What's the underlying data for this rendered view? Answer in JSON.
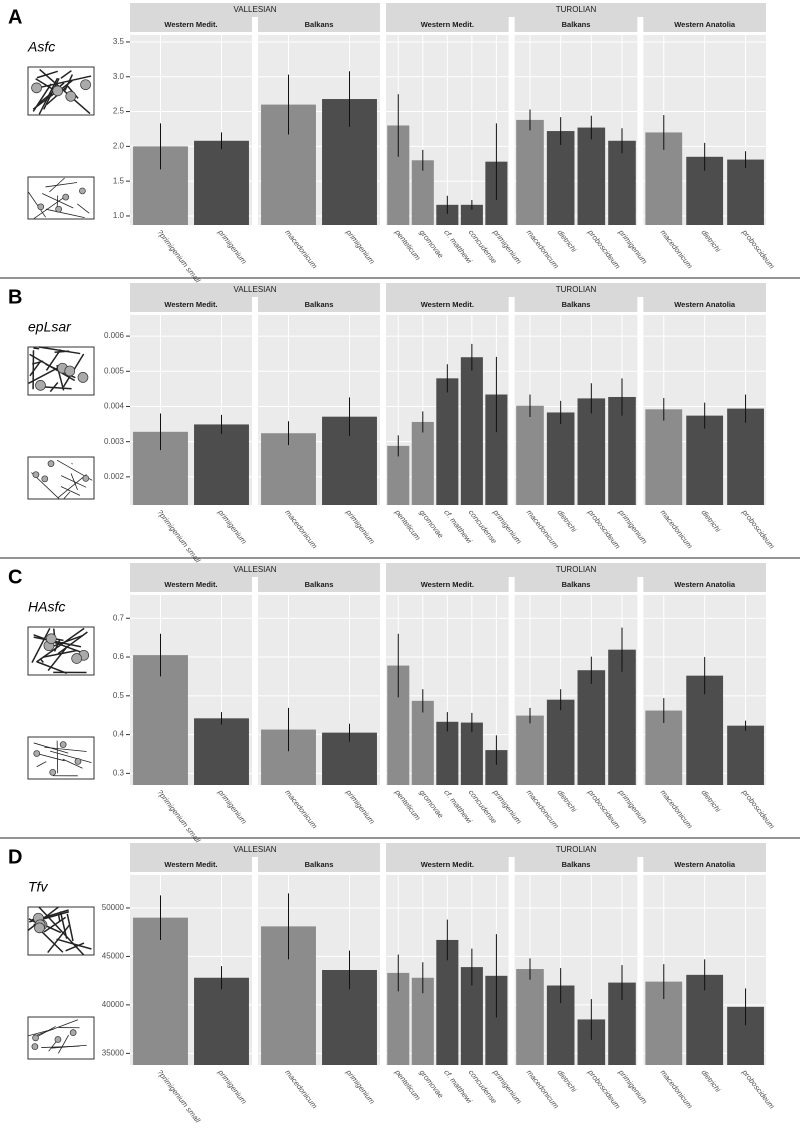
{
  "chart_data": [
    {
      "type": "bar",
      "label": "A",
      "metric": "Asfc",
      "ylim": [
        0.87,
        3.6
      ],
      "yticks": [
        {
          "value": 1,
          "label": "1.0"
        },
        1.5,
        {
          "value": 2,
          "label": "2.0"
        },
        2.5,
        {
          "value": 3,
          "label": "3.0"
        },
        3.5
      ],
      "grid": true,
      "periods": [
        {
          "name": "VALLESIAN",
          "facets": [
            {
              "region": "Western Medit.",
              "categories": [
                "?primigenium small",
                "primigenium"
              ],
              "values": [
                2.0,
                2.08
              ],
              "errors": [
                0.33,
                0.12
              ],
              "colors": [
                "#8c8c8c",
                "#4d4d4d"
              ]
            },
            {
              "region": "Balkans",
              "categories": [
                "macedonicum",
                "primigenium"
              ],
              "values": [
                2.6,
                2.68
              ],
              "errors": [
                0.43,
                0.4
              ],
              "colors": [
                "#8c8c8c",
                "#4d4d4d"
              ]
            }
          ]
        },
        {
          "name": "TUROLIAN",
          "facets": [
            {
              "region": "Western Medit.",
              "categories": [
                "pentelicum",
                "gromovae",
                "cf. matthewi",
                "concudense",
                "primigenium"
              ],
              "values": [
                2.3,
                1.8,
                1.16,
                1.16,
                1.78
              ],
              "errors": [
                0.45,
                0.15,
                0.13,
                0.07,
                0.55
              ],
              "colors": [
                "#8c8c8c",
                "#8c8c8c",
                "#4d4d4d",
                "#4d4d4d",
                "#4d4d4d"
              ]
            },
            {
              "region": "Balkans",
              "categories": [
                "macedonicum",
                "dietrichi",
                "proboscideum",
                "primigenium"
              ],
              "values": [
                2.38,
                2.22,
                2.27,
                2.08
              ],
              "errors": [
                0.15,
                0.2,
                0.17,
                0.18
              ],
              "colors": [
                "#8c8c8c",
                "#4d4d4d",
                "#4d4d4d",
                "#4d4d4d"
              ]
            },
            {
              "region": "Western Anatolia",
              "categories": [
                "macedonicum",
                "dietrichi",
                "proboscideum"
              ],
              "values": [
                2.2,
                1.85,
                1.81
              ],
              "errors": [
                0.25,
                0.2,
                0.12
              ],
              "colors": [
                "#8c8c8c",
                "#4d4d4d",
                "#4d4d4d"
              ]
            }
          ]
        }
      ]
    },
    {
      "type": "bar",
      "label": "B",
      "metric": "epLsar",
      "ylim": [
        0.0012,
        0.0066
      ],
      "yticks": [
        0.002,
        0.003,
        0.004,
        0.005,
        0.006
      ],
      "grid": true,
      "periods": [
        {
          "name": "VALLESIAN",
          "facets": [
            {
              "region": "Western Medit.",
              "categories": [
                "?primigenium small",
                "primigenium"
              ],
              "values": [
                0.00328,
                0.00349
              ],
              "errors": [
                0.00052,
                0.00027
              ],
              "colors": [
                "#8c8c8c",
                "#4d4d4d"
              ]
            },
            {
              "region": "Balkans",
              "categories": [
                "macedonicum",
                "primigenium"
              ],
              "values": [
                0.00324,
                0.00371
              ],
              "errors": [
                0.00034,
                0.00055
              ],
              "colors": [
                "#8c8c8c",
                "#4d4d4d"
              ]
            }
          ]
        },
        {
          "name": "TUROLIAN",
          "facets": [
            {
              "region": "Western Medit.",
              "categories": [
                "pentelicum",
                "gromovae",
                "cf. matthewi",
                "concudense",
                "primigenium"
              ],
              "values": [
                0.00288,
                0.00356,
                0.0048,
                0.0054,
                0.00434
              ],
              "errors": [
                0.0003,
                0.0003,
                0.0004,
                0.00038,
                0.00107
              ],
              "colors": [
                "#8c8c8c",
                "#8c8c8c",
                "#4d4d4d",
                "#4d4d4d",
                "#4d4d4d"
              ]
            },
            {
              "region": "Balkans",
              "categories": [
                "macedonicum",
                "dietrichi",
                "proboscideum",
                "primigenium"
              ],
              "values": [
                0.00402,
                0.00383,
                0.00423,
                0.00427
              ],
              "errors": [
                0.00032,
                0.00033,
                0.00043,
                0.00053
              ],
              "colors": [
                "#8c8c8c",
                "#4d4d4d",
                "#4d4d4d",
                "#4d4d4d"
              ]
            },
            {
              "region": "Western Anatolia",
              "categories": [
                "macedonicum",
                "dietrichi",
                "proboscideum"
              ],
              "values": [
                0.00392,
                0.00374,
                0.00394
              ],
              "errors": [
                0.00032,
                0.00037,
                0.0004
              ],
              "colors": [
                "#8c8c8c",
                "#4d4d4d",
                "#4d4d4d"
              ]
            }
          ]
        }
      ]
    },
    {
      "type": "bar",
      "label": "C",
      "metric": "HAsfc",
      "ylim": [
        0.27,
        0.76
      ],
      "yticks": [
        0.3,
        0.4,
        0.5,
        0.6,
        0.7
      ],
      "grid": true,
      "periods": [
        {
          "name": "VALLESIAN",
          "facets": [
            {
              "region": "Western Medit.",
              "categories": [
                "?primigenium small",
                "primigenium"
              ],
              "values": [
                0.605,
                0.442
              ],
              "errors": [
                0.055,
                0.016
              ],
              "colors": [
                "#8c8c8c",
                "#4d4d4d"
              ]
            },
            {
              "region": "Balkans",
              "categories": [
                "macedonicum",
                "primigenium"
              ],
              "values": [
                0.413,
                0.405
              ],
              "errors": [
                0.056,
                0.023
              ],
              "colors": [
                "#8c8c8c",
                "#4d4d4d"
              ]
            }
          ]
        },
        {
          "name": "TUROLIAN",
          "facets": [
            {
              "region": "Western Medit.",
              "categories": [
                "pentelicum",
                "gromovae",
                "cf. matthewi",
                "concudense",
                "primigenium"
              ],
              "values": [
                0.578,
                0.487,
                0.433,
                0.431,
                0.36
              ],
              "errors": [
                0.082,
                0.03,
                0.025,
                0.025,
                0.038
              ],
              "colors": [
                "#8c8c8c",
                "#8c8c8c",
                "#4d4d4d",
                "#4d4d4d",
                "#4d4d4d"
              ]
            },
            {
              "region": "Balkans",
              "categories": [
                "macedonicum",
                "dietrichi",
                "proboscideum",
                "primigenium"
              ],
              "values": [
                0.449,
                0.49,
                0.566,
                0.619
              ],
              "errors": [
                0.02,
                0.027,
                0.035,
                0.057
              ],
              "colors": [
                "#8c8c8c",
                "#4d4d4d",
                "#4d4d4d",
                "#4d4d4d"
              ]
            },
            {
              "region": "Western Anatolia",
              "categories": [
                "macedonicum",
                "dietrichi",
                "proboscideum"
              ],
              "values": [
                0.462,
                0.552,
                0.423
              ],
              "errors": [
                0.032,
                0.048,
                0.013
              ],
              "colors": [
                "#8c8c8c",
                "#4d4d4d",
                "#4d4d4d"
              ]
            }
          ]
        }
      ]
    },
    {
      "type": "bar",
      "label": "D",
      "metric": "Tfv",
      "ylim": [
        33800,
        53400
      ],
      "yticks": [
        35000,
        40000,
        45000,
        50000
      ],
      "grid": true,
      "periods": [
        {
          "name": "VALLESIAN",
          "facets": [
            {
              "region": "Western Medit.",
              "categories": [
                "?primigenium small",
                "primigenium"
              ],
              "values": [
                49000,
                42800
              ],
              "errors": [
                2300,
                1200
              ],
              "colors": [
                "#8c8c8c",
                "#4d4d4d"
              ]
            },
            {
              "region": "Balkans",
              "categories": [
                "macedonicum",
                "primigenium"
              ],
              "values": [
                48100,
                43600
              ],
              "errors": [
                3400,
                2000
              ],
              "colors": [
                "#8c8c8c",
                "#4d4d4d"
              ]
            }
          ]
        },
        {
          "name": "TUROLIAN",
          "facets": [
            {
              "region": "Western Medit.",
              "categories": [
                "pentelicum",
                "gromovae",
                "cf. matthewi",
                "concudense",
                "primigenium"
              ],
              "values": [
                43300,
                42800,
                46700,
                43900,
                43000
              ],
              "errors": [
                1900,
                1600,
                2100,
                1900,
                4300
              ],
              "colors": [
                "#8c8c8c",
                "#8c8c8c",
                "#4d4d4d",
                "#4d4d4d",
                "#4d4d4d"
              ]
            },
            {
              "region": "Balkans",
              "categories": [
                "macedonicum",
                "dietrichi",
                "proboscideum",
                "primigenium"
              ],
              "values": [
                43700,
                42000,
                38500,
                42300
              ],
              "errors": [
                1100,
                1800,
                2100,
                1800
              ],
              "colors": [
                "#8c8c8c",
                "#4d4d4d",
                "#4d4d4d",
                "#4d4d4d"
              ]
            },
            {
              "region": "Western Anatolia",
              "categories": [
                "macedonicum",
                "dietrichi",
                "proboscideum"
              ],
              "values": [
                42400,
                43100,
                39800
              ],
              "errors": [
                1800,
                1600,
                1900
              ],
              "colors": [
                "#8c8c8c",
                "#4d4d4d",
                "#4d4d4d"
              ]
            }
          ]
        }
      ]
    }
  ]
}
